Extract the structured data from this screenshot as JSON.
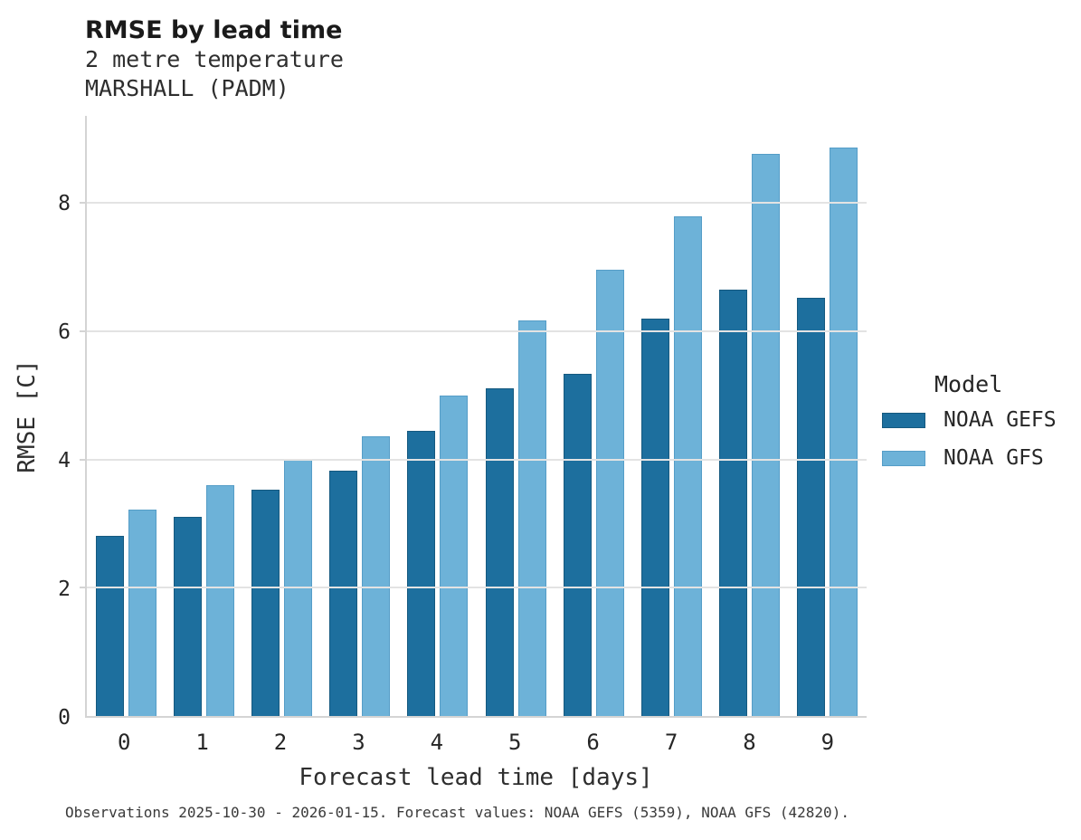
{
  "header": {
    "title": "RMSE by lead time",
    "subtitle_line1": "2 metre temperature",
    "subtitle_line2": "MARSHALL (PADM)"
  },
  "legend": {
    "title": "Model",
    "entries": [
      "NOAA GEFS",
      "NOAA GFS"
    ]
  },
  "footer": {
    "text": "Observations 2025-10-30 - 2026-01-15. Forecast values: NOAA GEFS (5359), NOAA GFS (42820)."
  },
  "chart_data": {
    "type": "bar",
    "title": "RMSE by lead time",
    "subtitle": [
      "2 metre temperature",
      "MARSHALL (PADM)"
    ],
    "xlabel": "Forecast lead time [days]",
    "ylabel": "RMSE [C]",
    "categories": [
      "0",
      "1",
      "2",
      "3",
      "4",
      "5",
      "6",
      "7",
      "8",
      "9"
    ],
    "series": [
      {
        "name": "NOAA GEFS",
        "color": "#1d6f9e",
        "edge_color": "#15597f",
        "values": [
          2.81,
          3.1,
          3.53,
          3.83,
          4.45,
          5.11,
          5.34,
          6.2,
          6.65,
          6.52
        ]
      },
      {
        "name": "NOAA GFS",
        "color": "#6db2d8",
        "edge_color": "#559dc7",
        "values": [
          3.22,
          3.6,
          4.0,
          4.36,
          5.0,
          6.17,
          6.96,
          7.8,
          8.77,
          8.86
        ]
      }
    ],
    "ylim": [
      0,
      9.36
    ],
    "yticks": [
      0,
      2,
      4,
      6,
      8
    ],
    "grid": true,
    "legend_title": "Model",
    "legend_position": "right"
  }
}
